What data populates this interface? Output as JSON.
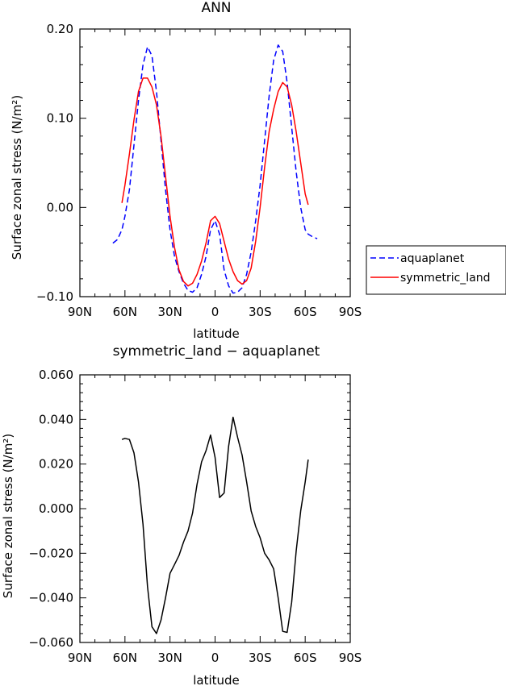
{
  "chart_data": [
    {
      "type": "line",
      "title": "ANN",
      "xlabel": "latitude",
      "ylabel": "Surface zonal stress (N/m²)",
      "xlim": [
        -90,
        90
      ],
      "ylim": [
        -0.1,
        0.2
      ],
      "x_ticks": [
        -90,
        -60,
        -30,
        0,
        30,
        60,
        90
      ],
      "x_tick_labels": [
        "90N",
        "60N",
        "30N",
        "0",
        "30S",
        "60S",
        "90S"
      ],
      "y_ticks": [
        -0.1,
        0.0,
        0.1,
        0.2
      ],
      "y_tick_labels": [
        "−0.10",
        "0.00",
        "0.10",
        "0.20"
      ],
      "grid": false,
      "legend": "right",
      "series": [
        {
          "name": "aquaplanet",
          "color": "#0000ff",
          "dash": "dashed",
          "x": [
            -68,
            -65,
            -62,
            -60,
            -57,
            -54,
            -51,
            -48,
            -45,
            -42,
            -39,
            -36,
            -33,
            -30,
            -27,
            -24,
            -21,
            -18,
            -15,
            -12,
            -9,
            -6,
            -3,
            0,
            3,
            6,
            9,
            12,
            15,
            18,
            21,
            24,
            27,
            30,
            33,
            36,
            39,
            42,
            45,
            48,
            51,
            54,
            57,
            60,
            62,
            65,
            68
          ],
          "y": [
            -0.04,
            -0.036,
            -0.025,
            -0.01,
            0.02,
            0.07,
            0.12,
            0.16,
            0.18,
            0.17,
            0.13,
            0.075,
            0.02,
            -0.025,
            -0.055,
            -0.072,
            -0.085,
            -0.093,
            -0.095,
            -0.09,
            -0.075,
            -0.055,
            -0.025,
            -0.015,
            -0.03,
            -0.07,
            -0.088,
            -0.096,
            -0.095,
            -0.09,
            -0.075,
            -0.05,
            -0.015,
            0.025,
            0.075,
            0.125,
            0.165,
            0.182,
            0.175,
            0.14,
            0.09,
            0.04,
            0.0,
            -0.025,
            -0.03,
            -0.033,
            -0.035
          ]
        },
        {
          "name": "symmetric_land",
          "color": "#ff0000",
          "dash": "solid",
          "x": [
            -62,
            -60,
            -57,
            -54,
            -51,
            -48,
            -45,
            -42,
            -39,
            -36,
            -33,
            -30,
            -27,
            -24,
            -21,
            -18,
            -15,
            -12,
            -9,
            -6,
            -3,
            0,
            3,
            6,
            9,
            12,
            15,
            18,
            21,
            24,
            27,
            30,
            33,
            36,
            39,
            42,
            45,
            48,
            51,
            54,
            57,
            60,
            62
          ],
          "y": [
            0.005,
            0.025,
            0.06,
            0.098,
            0.13,
            0.145,
            0.145,
            0.135,
            0.115,
            0.08,
            0.035,
            -0.01,
            -0.045,
            -0.07,
            -0.083,
            -0.088,
            -0.085,
            -0.075,
            -0.06,
            -0.04,
            -0.015,
            -0.01,
            -0.018,
            -0.038,
            -0.058,
            -0.072,
            -0.082,
            -0.086,
            -0.082,
            -0.068,
            -0.038,
            0.0,
            0.045,
            0.085,
            0.11,
            0.13,
            0.14,
            0.135,
            0.115,
            0.085,
            0.05,
            0.015,
            0.003
          ]
        }
      ]
    },
    {
      "type": "line",
      "title": "symmetric_land − aquaplanet",
      "xlabel": "latitude",
      "ylabel": "Surface zonal stress (N/m²)",
      "xlim": [
        -90,
        90
      ],
      "ylim": [
        -0.06,
        0.06
      ],
      "x_ticks": [
        -90,
        -60,
        -30,
        0,
        30,
        60,
        90
      ],
      "x_tick_labels": [
        "90N",
        "60N",
        "30N",
        "0",
        "30S",
        "60S",
        "90S"
      ],
      "y_ticks": [
        -0.06,
        -0.04,
        -0.02,
        0.0,
        0.02,
        0.04,
        0.06
      ],
      "y_tick_labels": [
        "−0.060",
        "−0.040",
        "−0.020",
        "0.000",
        "0.020",
        "0.040",
        "0.060"
      ],
      "grid": false,
      "series": [
        {
          "color": "#000000",
          "dash": "solid",
          "x": [
            -62,
            -60,
            -57,
            -54,
            -51,
            -48,
            -45,
            -42,
            -39,
            -36,
            -33,
            -30,
            -27,
            -24,
            -21,
            -18,
            -15,
            -12,
            -9,
            -6,
            -3,
            0,
            3,
            6,
            9,
            12,
            15,
            18,
            21,
            24,
            27,
            30,
            33,
            36,
            39,
            42,
            45,
            48,
            51,
            54,
            57,
            60,
            62
          ],
          "y": [
            0.031,
            0.0315,
            0.031,
            0.025,
            0.012,
            -0.007,
            -0.035,
            -0.053,
            -0.056,
            -0.05,
            -0.04,
            -0.029,
            -0.025,
            -0.021,
            -0.015,
            -0.01,
            -0.002,
            0.011,
            0.021,
            0.026,
            0.033,
            0.023,
            0.005,
            0.007,
            0.028,
            0.041,
            0.032,
            0.024,
            0.012,
            -0.001,
            -0.008,
            -0.013,
            -0.02,
            -0.023,
            -0.027,
            -0.04,
            -0.055,
            -0.0555,
            -0.042,
            -0.019,
            -0.001,
            0.012,
            0.022
          ]
        }
      ]
    }
  ]
}
